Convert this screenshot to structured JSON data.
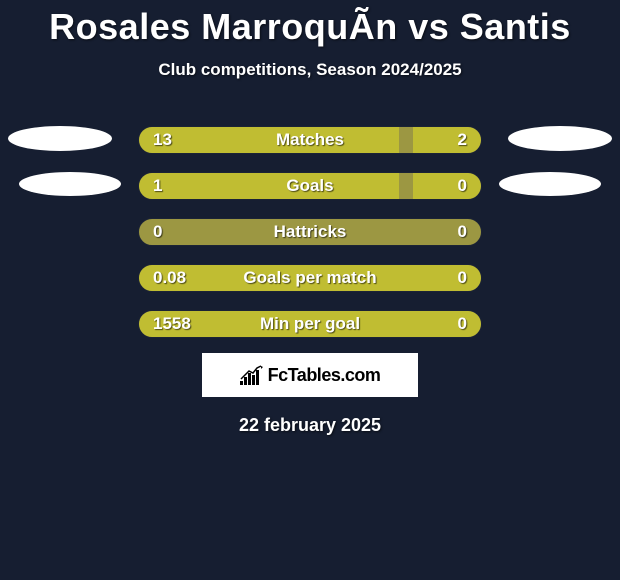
{
  "header": {
    "title": "Rosales MarroquÃ­n vs Santis",
    "subtitle": "Club competitions, Season 2024/2025"
  },
  "chart": {
    "track_width": 344,
    "track_height": 28,
    "track_color": "#9c9742",
    "fill_color": "#c0bd32",
    "border_color": "#1b2335",
    "text_color": "#ffffff",
    "font_size": 17,
    "rows": [
      {
        "label": "Matches",
        "left_value": "13",
        "right_value": "2",
        "left_pct": 76,
        "right_pct": 20,
        "show_left_ellipse": true,
        "show_right_ellipse": true,
        "ellipse_variant": 1
      },
      {
        "label": "Goals",
        "left_value": "1",
        "right_value": "0",
        "left_pct": 76,
        "right_pct": 20,
        "show_left_ellipse": true,
        "show_right_ellipse": true,
        "ellipse_variant": 2
      },
      {
        "label": "Hattricks",
        "left_value": "0",
        "right_value": "0",
        "left_pct": 0,
        "right_pct": 0,
        "show_left_ellipse": false,
        "show_right_ellipse": false,
        "ellipse_variant": 0
      },
      {
        "label": "Goals per match",
        "left_value": "0.08",
        "right_value": "0",
        "left_pct": 100,
        "right_pct": 0,
        "show_left_ellipse": false,
        "show_right_ellipse": false,
        "ellipse_variant": 0
      },
      {
        "label": "Min per goal",
        "left_value": "1558",
        "right_value": "0",
        "left_pct": 100,
        "right_pct": 0,
        "show_left_ellipse": false,
        "show_right_ellipse": false,
        "ellipse_variant": 0
      }
    ]
  },
  "logo": {
    "text": "FcTables.com",
    "box_bg": "#ffffff",
    "icon_color": "#000000",
    "text_color": "#000000"
  },
  "footer": {
    "date": "22 february 2025"
  },
  "style": {
    "page_bg": "#161e31",
    "title_fontsize": 36,
    "subtitle_fontsize": 17,
    "ellipse_color": "#ffffff"
  }
}
